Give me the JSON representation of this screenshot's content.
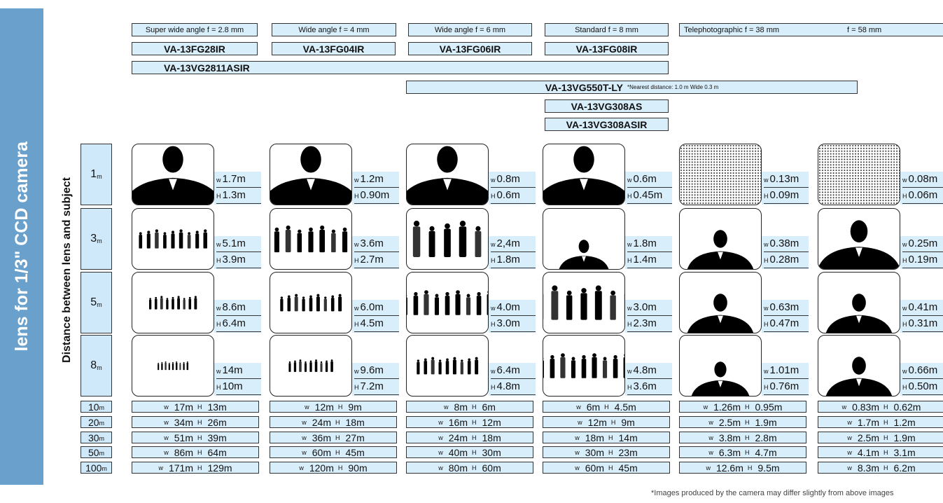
{
  "side_title": "lens for 1/3\" CCD camera",
  "axis_label": "Distance between lens and subject",
  "lens_headers": [
    "Super wide angle  f = 2.8 mm",
    "Wide angle  f = 4 mm",
    "Wide angle  f = 6 mm",
    "Standard  f = 8 mm",
    "Telephotographic  f = 38 mm",
    "f = 58 mm"
  ],
  "models": [
    {
      "name": "VA-13FG28IR"
    },
    {
      "name": "VA-13FG04IR"
    },
    {
      "name": "VA-13FG06IR"
    },
    {
      "name": "VA-13FG08IR"
    },
    {
      "name": "VA-13VG2811ASIR"
    },
    {
      "name": "VA-13VG550T-LY",
      "note": "*Nearest distance: 1.0 m  Wide 0.3 m"
    },
    {
      "name": "VA-13VG308AS"
    },
    {
      "name": "VA-13VG308ASIR"
    }
  ],
  "distance_unit": "m",
  "w_label": "w",
  "h_label": "H",
  "rows": [
    {
      "distance": "1",
      "cells": [
        [
          "1.7m",
          "1.3m"
        ],
        [
          "1.2m",
          "0.90m"
        ],
        [
          "0.8m",
          "0.6m"
        ],
        [
          "0.6m",
          "0.45m"
        ],
        [
          "0.13m",
          "0.09m"
        ],
        [
          "0.08m",
          "0.06m"
        ]
      ]
    },
    {
      "distance": "3",
      "cells": [
        [
          "5.1m",
          "3.9m"
        ],
        [
          "3.6m",
          "2.7m"
        ],
        [
          "2,4m",
          "1.8m"
        ],
        [
          "1.8m",
          "1.4m"
        ],
        [
          "0.38m",
          "0.28m"
        ],
        [
          "0.25m",
          "0.19m"
        ]
      ]
    },
    {
      "distance": "5",
      "cells": [
        [
          "8.6m",
          "6.4m"
        ],
        [
          "6.0m",
          "4.5m"
        ],
        [
          "4.0m",
          "3.0m"
        ],
        [
          "3.0m",
          "2.3m"
        ],
        [
          "0.63m",
          "0.47m"
        ],
        [
          "0.41m",
          "0.31m"
        ]
      ]
    },
    {
      "distance": "8",
      "cells": [
        [
          "14m",
          "10m"
        ],
        [
          "9.6m",
          "7.2m"
        ],
        [
          "6.4m",
          "4.8m"
        ],
        [
          "4.8m",
          "3.6m"
        ],
        [
          "1.01m",
          "0.76m"
        ],
        [
          "0.66m",
          "0.50m"
        ]
      ]
    },
    {
      "distance": "10",
      "cells": [
        [
          "17m",
          "13m"
        ],
        [
          "12m",
          "9m"
        ],
        [
          "8m",
          "6m"
        ],
        [
          "6m",
          "4.5m"
        ],
        [
          "1.26m",
          "0.95m"
        ],
        [
          "0.83m",
          "0.62m"
        ]
      ]
    },
    {
      "distance": "20",
      "cells": [
        [
          "34m",
          "26m"
        ],
        [
          "24m",
          "18m"
        ],
        [
          "16m",
          "12m"
        ],
        [
          "12m",
          "9m"
        ],
        [
          "2.5m",
          "1.9m"
        ],
        [
          "1.7m",
          "1.2m"
        ]
      ]
    },
    {
      "distance": "30",
      "cells": [
        [
          "51m",
          "39m"
        ],
        [
          "36m",
          "27m"
        ],
        [
          "24m",
          "18m"
        ],
        [
          "18m",
          "14m"
        ],
        [
          "3.8m",
          "2.8m"
        ],
        [
          "2.5m",
          "1.9m"
        ]
      ]
    },
    {
      "distance": "50",
      "cells": [
        [
          "86m",
          "64m"
        ],
        [
          "60m",
          "45m"
        ],
        [
          "40m",
          "30m"
        ],
        [
          "30m",
          "23m"
        ],
        [
          "6.3m",
          "4.7m"
        ],
        [
          "4.1m",
          "3.1m"
        ]
      ]
    },
    {
      "distance": "100",
      "cells": [
        [
          "171m",
          "129m"
        ],
        [
          "120m",
          "90m"
        ],
        [
          "80m",
          "60m"
        ],
        [
          "60m",
          "45m"
        ],
        [
          "12.6m",
          "9.5m"
        ],
        [
          "8.3m",
          "6.2m"
        ]
      ]
    }
  ],
  "footnote": "*Images produced by the camera may differ slightly from above images"
}
